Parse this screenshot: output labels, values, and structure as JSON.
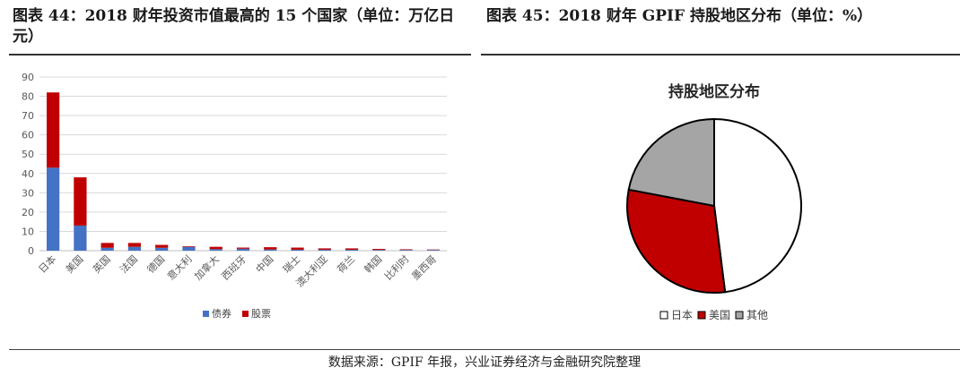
{
  "captions": {
    "left": "图表 44：2018 财年投资市值最高的 15 个国家（单位：万亿日元）",
    "right": "图表 45：2018 财年 GPIF 持股地区分布（单位：%）"
  },
  "source": "数据来源：GPIF 年报，兴业证券经济与金融研究院整理",
  "colors": {
    "bonds": "#4472c4",
    "stocks": "#c00000",
    "other": "#a5a5a5",
    "japan_slice": "#ffffff"
  },
  "chart_data": [
    {
      "type": "bar",
      "stacked": true,
      "categories": [
        "日本",
        "美国",
        "英国",
        "法国",
        "德国",
        "意大利",
        "加拿大",
        "西班牙",
        "中国",
        "瑞士",
        "澳大利亚",
        "荷兰",
        "韩国",
        "比利时",
        "墨西哥"
      ],
      "series": [
        {
          "name": "债券",
          "values": [
            43,
            13,
            1.5,
            2,
            1.5,
            2,
            0.8,
            1,
            0.6,
            0.5,
            0.5,
            0.5,
            0.4,
            0.4,
            0.4
          ]
        },
        {
          "name": "股票",
          "values": [
            39,
            25,
            2.5,
            2,
            1.5,
            0.3,
            1.2,
            0.6,
            1.2,
            1.1,
            0.7,
            0.7,
            0.5,
            0.3,
            0.2
          ]
        }
      ],
      "ylim": [
        0,
        90
      ],
      "yticks": [
        0,
        10,
        20,
        30,
        40,
        50,
        60,
        70,
        80,
        90
      ],
      "grid": true,
      "legend": "bottom"
    },
    {
      "type": "pie",
      "title": "持股地区分布",
      "labels": [
        "日本",
        "美国",
        "其他"
      ],
      "values": [
        48,
        30,
        22
      ],
      "legend": "bottom"
    }
  ]
}
